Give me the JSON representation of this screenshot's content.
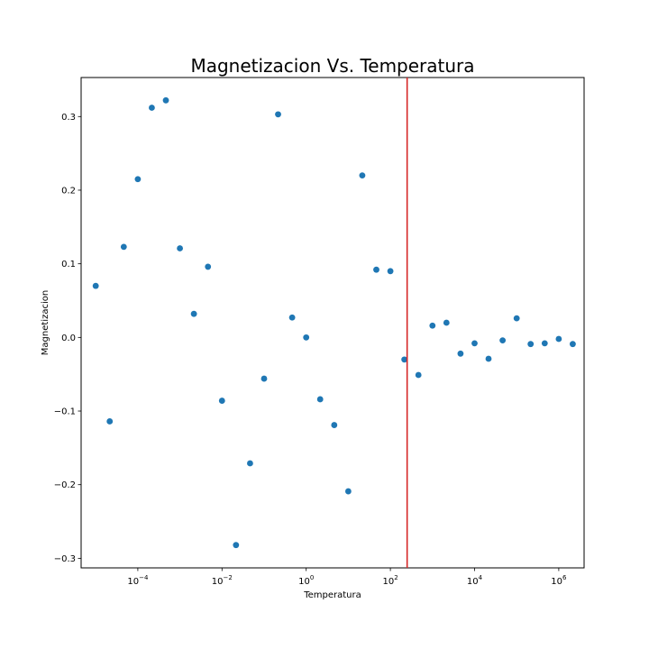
{
  "chart_data": {
    "type": "scatter",
    "title": "Magnetizacion Vs. Temperatura",
    "xlabel": "Temperatura",
    "ylabel": "Magnetizacion",
    "xscale": "log",
    "xlim": [
      4.5e-06,
      4000000
    ],
    "ylim": [
      -0.313,
      0.353
    ],
    "grid": false,
    "x_ticks": [
      {
        "base": "10",
        "exp": "−4",
        "value": 0.0001
      },
      {
        "base": "10",
        "exp": "−2",
        "value": 0.01
      },
      {
        "base": "10",
        "exp": "0",
        "value": 1
      },
      {
        "base": "10",
        "exp": "2",
        "value": 100
      },
      {
        "base": "10",
        "exp": "4",
        "value": 10000
      },
      {
        "base": "10",
        "exp": "6",
        "value": 1000000
      }
    ],
    "y_ticks": [
      {
        "label": "0.3",
        "value": 0.3
      },
      {
        "label": "0.2",
        "value": 0.2
      },
      {
        "label": "0.1",
        "value": 0.1
      },
      {
        "label": "0.0",
        "value": 0.0
      },
      {
        "label": "−0.1",
        "value": -0.1
      },
      {
        "label": "−0.2",
        "value": -0.2
      },
      {
        "label": "−0.3",
        "value": -0.3
      }
    ],
    "marker_color": "#1f77b4",
    "vline": {
      "x": 250,
      "color": "#d62728"
    },
    "points": [
      {
        "x": 1e-05,
        "y": 0.07
      },
      {
        "x": 2.15e-05,
        "y": -0.114
      },
      {
        "x": 4.64e-05,
        "y": 0.123
      },
      {
        "x": 0.0001,
        "y": 0.215
      },
      {
        "x": 0.000215,
        "y": 0.312
      },
      {
        "x": 0.000464,
        "y": 0.322
      },
      {
        "x": 0.001,
        "y": 0.121
      },
      {
        "x": 0.00215,
        "y": 0.032
      },
      {
        "x": 0.00464,
        "y": 0.096
      },
      {
        "x": 0.01,
        "y": -0.086
      },
      {
        "x": 0.0215,
        "y": -0.282
      },
      {
        "x": 0.0464,
        "y": -0.171
      },
      {
        "x": 0.1,
        "y": -0.056
      },
      {
        "x": 0.215,
        "y": 0.303
      },
      {
        "x": 0.464,
        "y": 0.027
      },
      {
        "x": 1,
        "y": 0.0
      },
      {
        "x": 2.15,
        "y": -0.084
      },
      {
        "x": 4.64,
        "y": -0.119
      },
      {
        "x": 10,
        "y": -0.209
      },
      {
        "x": 21.5,
        "y": 0.22
      },
      {
        "x": 46.4,
        "y": 0.092
      },
      {
        "x": 100,
        "y": 0.09
      },
      {
        "x": 215,
        "y": -0.03
      },
      {
        "x": 464,
        "y": -0.051
      },
      {
        "x": 1000,
        "y": 0.016
      },
      {
        "x": 2150,
        "y": 0.02
      },
      {
        "x": 4640,
        "y": -0.022
      },
      {
        "x": 10000,
        "y": -0.008
      },
      {
        "x": 21500,
        "y": -0.029
      },
      {
        "x": 46400,
        "y": -0.004
      },
      {
        "x": 100000,
        "y": 0.026
      },
      {
        "x": 215000,
        "y": -0.009
      },
      {
        "x": 464000,
        "y": -0.008
      },
      {
        "x": 1000000,
        "y": -0.002
      },
      {
        "x": 2150000,
        "y": -0.009
      }
    ]
  }
}
